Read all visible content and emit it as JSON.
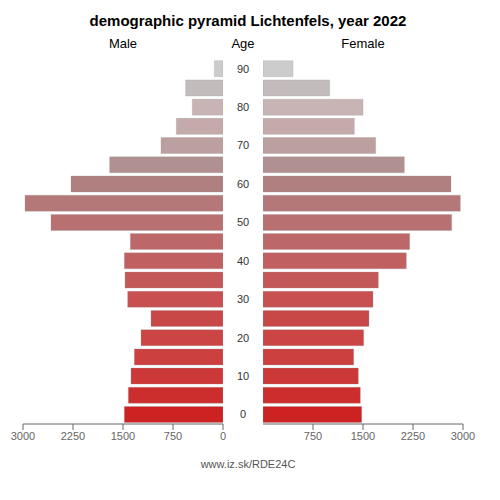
{
  "chart_data": {
    "type": "bar",
    "orientation": "horizontal",
    "title": "demographic pyramid Lichtenfels, year 2022",
    "ylabel": "Age",
    "annotations": [
      "www.iz.sk/RDE24C"
    ],
    "categories": [
      0,
      null,
      10,
      null,
      20,
      null,
      30,
      null,
      40,
      null,
      50,
      null,
      60,
      null,
      70,
      null,
      80,
      null,
      90
    ],
    "series": [
      {
        "name": "Male",
        "values": [
          1480,
          1420,
          1380,
          1330,
          1230,
          1080,
          1430,
          1470,
          1480,
          1390,
          2580,
          2970,
          2280,
          1700,
          930,
          700,
          460,
          560,
          130
        ],
        "colors": [
          "#cc2222",
          "#cc2e2e",
          "#cc3838",
          "#cc4040",
          "#cc4545",
          "#c84848",
          "#c85050",
          "#c45858",
          "#c06060",
          "#bc6868",
          "#b87070",
          "#b47878",
          "#b08080",
          "#b09090",
          "#bca0a0",
          "#c4aaaa",
          "#c8b4b4",
          "#c4bcbc",
          "#cccccc"
        ]
      },
      {
        "name": "Female",
        "values": [
          1480,
          1460,
          1430,
          1360,
          1510,
          1590,
          1650,
          1730,
          2150,
          2200,
          2830,
          2960,
          2820,
          2120,
          1690,
          1370,
          1500,
          1000,
          450
        ],
        "colors": [
          "#cc2222",
          "#cc2e2e",
          "#cc3838",
          "#cc4040",
          "#cc4545",
          "#c84848",
          "#c85050",
          "#c45858",
          "#c06060",
          "#bc6868",
          "#b87070",
          "#b47878",
          "#b08080",
          "#b09090",
          "#bca0a0",
          "#c4aaaa",
          "#c8b4b4",
          "#c4bcbc",
          "#cccccc"
        ]
      }
    ],
    "xlim": [
      0,
      3000
    ],
    "xticks": [
      0,
      750,
      1500,
      2250,
      3000
    ]
  }
}
